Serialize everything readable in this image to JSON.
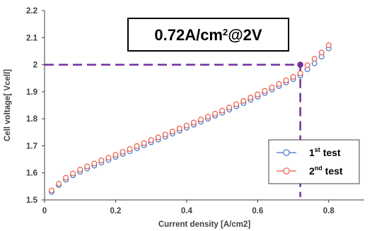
{
  "chart_data": {
    "type": "scatter",
    "xlabel": "Current density [A/cm2]",
    "ylabel": "Cell voltage[ Vcell]",
    "xlim": [
      0,
      0.9
    ],
    "ylim": [
      1.5,
      2.2
    ],
    "x_ticks": [
      "0",
      "0.2",
      "0.4",
      "0.6",
      "0.8"
    ],
    "y_ticks": [
      "1.5",
      "1.6",
      "1.7",
      "1.8",
      "1.9",
      "2",
      "2.1",
      "2.2"
    ],
    "x_tick_values": [
      0,
      0.2,
      0.4,
      0.6,
      0.8
    ],
    "y_tick_values": [
      1.5,
      1.6,
      1.7,
      1.8,
      1.9,
      2.0,
      2.1,
      2.2
    ],
    "grid": false,
    "legend_position": "bottom-right",
    "annotation": {
      "base": "0.72A/cm",
      "sup": "2",
      "tail": "@2V",
      "point": [
        0.72,
        2.0
      ],
      "color": "#7030a0"
    },
    "series": [
      {
        "name": "1st test",
        "label_base": "1",
        "label_sup": "st",
        "label_tail": " test",
        "color": "#4472c4",
        "x": [
          0.02,
          0.04,
          0.06,
          0.08,
          0.1,
          0.12,
          0.14,
          0.16,
          0.18,
          0.2,
          0.22,
          0.24,
          0.26,
          0.28,
          0.3,
          0.32,
          0.34,
          0.36,
          0.38,
          0.4,
          0.42,
          0.44,
          0.46,
          0.48,
          0.5,
          0.52,
          0.54,
          0.56,
          0.58,
          0.6,
          0.62,
          0.64,
          0.66,
          0.68,
          0.7,
          0.72,
          0.74,
          0.76,
          0.78,
          0.8
        ],
        "y": [
          1.53,
          1.555,
          1.575,
          1.591,
          1.604,
          1.616,
          1.627,
          1.638,
          1.648,
          1.659,
          1.67,
          1.68,
          1.691,
          1.702,
          1.713,
          1.723,
          1.734,
          1.745,
          1.756,
          1.767,
          1.778,
          1.789,
          1.8,
          1.811,
          1.822,
          1.834,
          1.846,
          1.858,
          1.87,
          1.882,
          1.895,
          1.908,
          1.921,
          1.934,
          1.947,
          1.96,
          1.983,
          2.005,
          2.03,
          2.06
        ]
      },
      {
        "name": "2nd test",
        "label_base": "2",
        "label_sup": "nd",
        "label_tail": " test",
        "color": "#ed5b47",
        "x": [
          0.02,
          0.04,
          0.06,
          0.08,
          0.1,
          0.12,
          0.14,
          0.16,
          0.18,
          0.2,
          0.22,
          0.24,
          0.26,
          0.28,
          0.3,
          0.32,
          0.34,
          0.36,
          0.38,
          0.4,
          0.42,
          0.44,
          0.46,
          0.48,
          0.5,
          0.52,
          0.54,
          0.56,
          0.58,
          0.6,
          0.62,
          0.64,
          0.66,
          0.68,
          0.7,
          0.72,
          0.74,
          0.76,
          0.78,
          0.8
        ],
        "y": [
          1.535,
          1.56,
          1.582,
          1.598,
          1.612,
          1.624,
          1.635,
          1.646,
          1.656,
          1.667,
          1.678,
          1.688,
          1.699,
          1.71,
          1.721,
          1.731,
          1.742,
          1.753,
          1.764,
          1.775,
          1.786,
          1.797,
          1.808,
          1.819,
          1.83,
          1.842,
          1.854,
          1.866,
          1.878,
          1.89,
          1.903,
          1.916,
          1.929,
          1.942,
          1.955,
          1.968,
          1.998,
          2.022,
          2.045,
          2.072
        ]
      }
    ]
  }
}
